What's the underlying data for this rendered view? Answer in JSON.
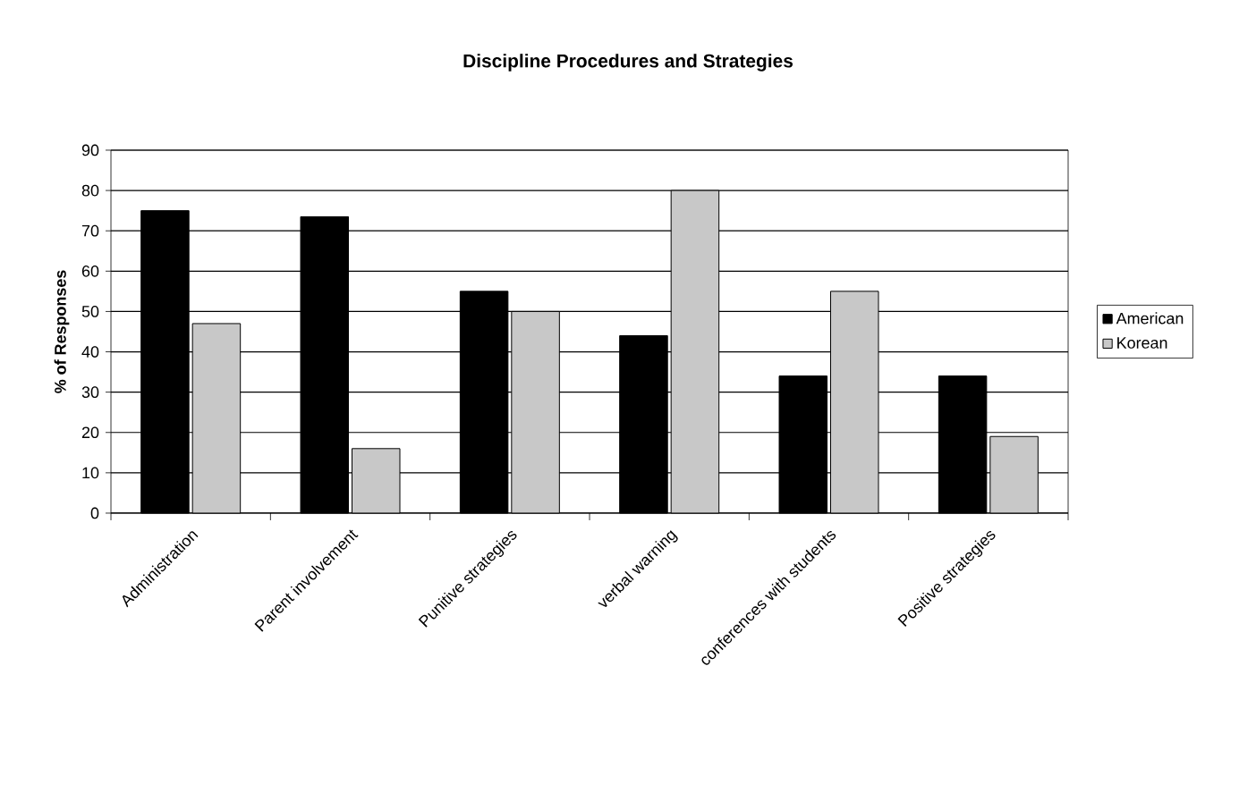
{
  "chart_data": {
    "type": "bar",
    "title": "Discipline Procedures and Strategies",
    "ylabel": "% of Responses",
    "categories": [
      "Administration",
      "Parent involvement",
      "Punitive strategies",
      "verbal warning",
      "conferences with students",
      "Positive strategies"
    ],
    "series": [
      {
        "name": "American",
        "color": "#000000",
        "values": [
          75,
          73.5,
          55,
          44,
          34,
          34
        ]
      },
      {
        "name": "Korean",
        "color": "#c8c8c8",
        "values": [
          47,
          16,
          50,
          80,
          55,
          19
        ]
      }
    ],
    "ylim": [
      0,
      90
    ],
    "yticks": [
      0,
      10,
      20,
      30,
      40,
      50,
      60,
      70,
      80,
      90
    ],
    "grid": "y",
    "legend": "right"
  }
}
